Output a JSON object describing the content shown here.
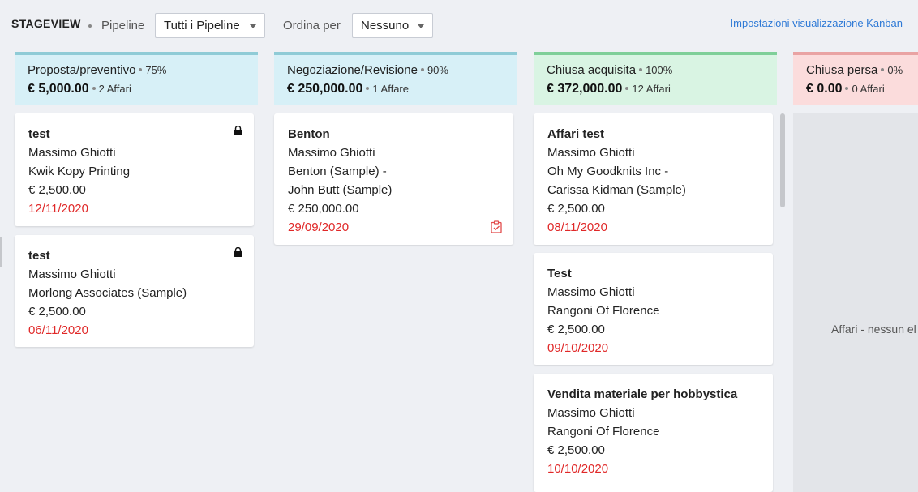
{
  "header": {
    "title": "STAGEVIEW",
    "pipeline_label": "Pipeline",
    "pipeline_value": "Tutti i Pipeline",
    "order_label": "Ordina per",
    "order_value": "Nessuno",
    "kanban_settings": "Impostazioni visualizzazione Kanban"
  },
  "columns": [
    {
      "name": "Proposta/preventivo",
      "percent": "75%",
      "amount": "€ 5,000.00",
      "count": "2 Affari",
      "cards": [
        {
          "title": "test",
          "owner": "Massimo Ghiotti",
          "account": "Kwik Kopy Printing",
          "amount": "€ 2,500.00",
          "date": "12/11/2020"
        },
        {
          "title": "test",
          "owner": "Massimo Ghiotti",
          "account": "Morlong Associates (Sample)",
          "amount": "€ 2,500.00",
          "date": "06/11/2020"
        }
      ]
    },
    {
      "name": "Negoziazione/Revisione",
      "percent": "90%",
      "amount": "€ 250,000.00",
      "count": "1 Affare",
      "cards": [
        {
          "title": "Benton",
          "owner": "Massimo Ghiotti",
          "account": "Benton (Sample)  -",
          "contact": "John Butt (Sample)",
          "amount": "€ 250,000.00",
          "date": "29/09/2020"
        }
      ]
    },
    {
      "name": "Chiusa acquisita",
      "percent": "100%",
      "amount": "€ 372,000.00",
      "count": "12 Affari",
      "cards": [
        {
          "title": "Affari test",
          "owner": "Massimo Ghiotti",
          "account": "Oh My Goodknits Inc  -",
          "contact": "Carissa Kidman (Sample)",
          "amount": "€ 2,500.00",
          "date": "08/11/2020"
        },
        {
          "title": "Test",
          "owner": "Massimo Ghiotti",
          "account": "Rangoni Of Florence",
          "amount": "€ 2,500.00",
          "date": "09/10/2020"
        },
        {
          "title": "Vendita materiale per hobbystica",
          "owner": "Massimo Ghiotti",
          "account": "Rangoni Of Florence",
          "amount": "€ 2,500.00",
          "date": "10/10/2020"
        }
      ]
    },
    {
      "name": "Chiusa persa",
      "percent": "0%",
      "amount": "€ 0.00",
      "count": "0 Affari",
      "empty_text": "Affari - nessun el"
    }
  ],
  "colors": {
    "accent_link": "#2f7ad6",
    "date_red": "#e02828",
    "header_blue": "#d7f0f7",
    "header_green": "#d9f4e3",
    "header_red": "#fbdcdc"
  },
  "icons": {
    "card_lock": "lock-icon",
    "card_task": "task-icon"
  }
}
